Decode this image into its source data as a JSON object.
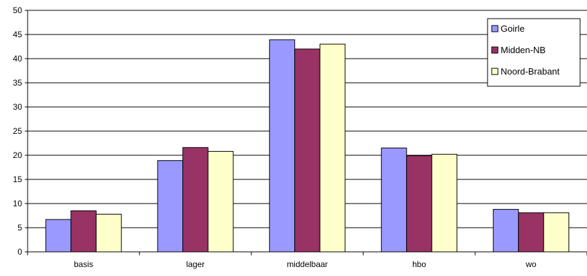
{
  "chart_data": {
    "type": "bar",
    "categories": [
      "basis",
      "lager",
      "middelbaar",
      "hbo",
      "wo"
    ],
    "series": [
      {
        "name": "Goirle",
        "color": "#9999ff",
        "values": [
          6.7,
          18.9,
          43.9,
          21.5,
          8.8
        ]
      },
      {
        "name": "Midden-NB",
        "color": "#993366",
        "values": [
          8.5,
          21.6,
          42.0,
          19.9,
          8.1
        ]
      },
      {
        "name": "Noord-Brabant",
        "color": "#ffffcc",
        "values": [
          7.8,
          20.8,
          43.0,
          20.2,
          8.1
        ]
      }
    ],
    "ylim": [
      0,
      50
    ],
    "yticks": [
      0,
      5,
      10,
      15,
      20,
      25,
      30,
      35,
      40,
      45,
      50
    ],
    "grid": true,
    "legend": "top-right"
  }
}
